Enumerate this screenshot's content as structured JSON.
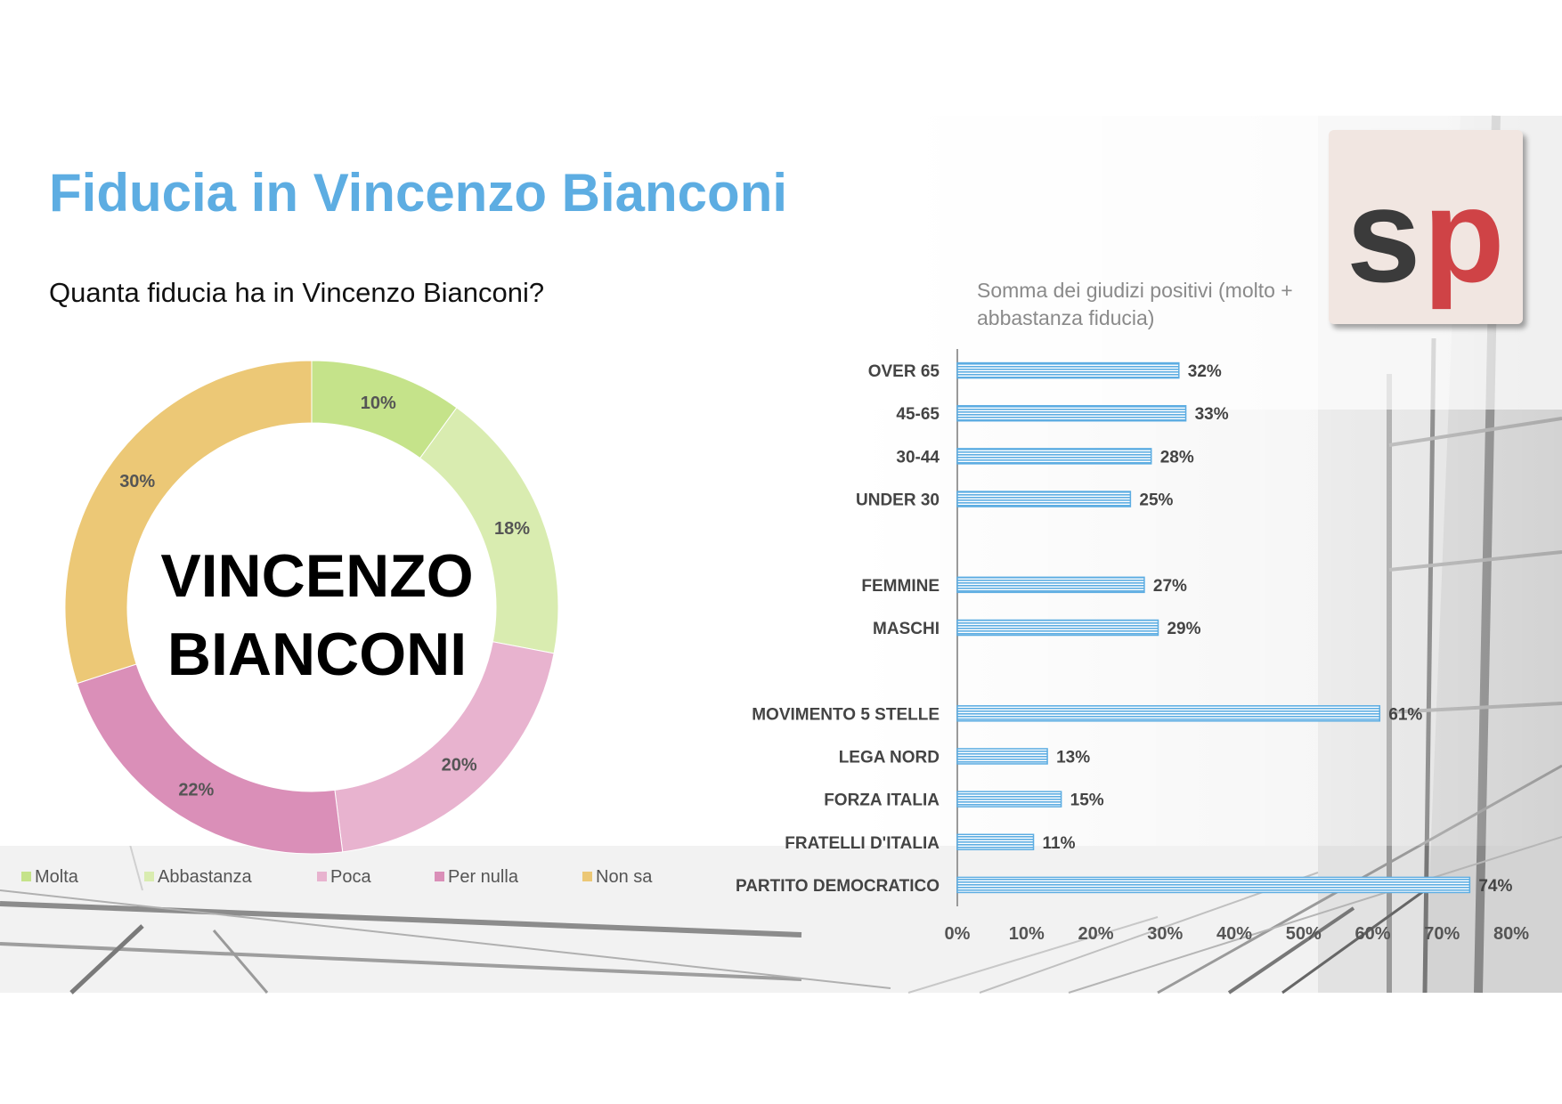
{
  "slide": {
    "title": "Fiducia in Vincenzo Bianconi",
    "question": "Quanta fiducia ha in Vincenzo Bianconi?",
    "logo": {
      "text_s": "sp",
      "color_s": "#3b3b3b",
      "color_p": "#cf4346"
    }
  },
  "chart_data": [
    {
      "type": "pie",
      "variant": "donut",
      "center_label": [
        "VINCENZO",
        "BIANCONI"
      ],
      "categories": [
        "Molta",
        "Abbastanza",
        "Poca",
        "Per nulla",
        "Non sa"
      ],
      "values": [
        10,
        18,
        20,
        22,
        30
      ],
      "labels": [
        "10%",
        "18%",
        "20%",
        "22%",
        "30%"
      ],
      "colors": [
        "#c5e38a",
        "#d9ecb0",
        "#e8b3cf",
        "#da8fb8",
        "#ecc876"
      ],
      "legend_position": "bottom"
    },
    {
      "type": "bar",
      "orientation": "horizontal",
      "title": "Somma dei giudizi positivi (molto + abbastanza fiducia)",
      "categories": [
        "OVER 65",
        "45-65",
        "30-44",
        "UNDER 30",
        "",
        "FEMMINE",
        "MASCHI",
        "",
        "MOVIMENTO 5 STELLE",
        "LEGA NORD",
        "FORZA ITALIA",
        "FRATELLI D'ITALIA",
        "PARTITO DEMOCRATICO"
      ],
      "values": [
        32,
        33,
        28,
        25,
        null,
        27,
        29,
        null,
        61,
        13,
        15,
        11,
        74
      ],
      "labels": [
        "32%",
        "33%",
        "28%",
        "25%",
        "",
        "27%",
        "29%",
        "",
        "61%",
        "13%",
        "15%",
        "11%",
        "74%"
      ],
      "xlim": [
        0,
        80
      ],
      "xticks": [
        "0%",
        "10%",
        "20%",
        "30%",
        "40%",
        "50%",
        "60%",
        "70%",
        "80%"
      ],
      "bar_color": "#5dade2",
      "grid": false
    }
  ]
}
